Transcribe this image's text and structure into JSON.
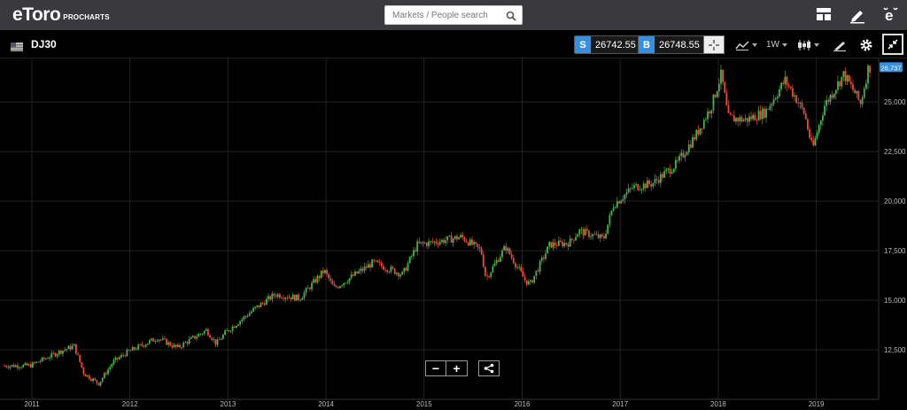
{
  "app": {
    "logo": "eToro",
    "logo_sub": "PROCHARTS"
  },
  "search": {
    "placeholder": "Markets / People search"
  },
  "instrument": {
    "symbol": "DJ30",
    "sell_label": "S",
    "sell_price": "26742.55",
    "buy_label": "B",
    "buy_price": "26748.55",
    "timeframe": "1W"
  },
  "chart_data": {
    "type": "candlestick",
    "x_ticks": [
      "2011",
      "2012",
      "2013",
      "2014",
      "2015",
      "2016",
      "2017",
      "2018",
      "2019"
    ],
    "y_ticks": [
      "12,500",
      "15,000",
      "17,500",
      "20,000",
      "22,500",
      "25,000"
    ],
    "ylim": [
      10000,
      27200
    ],
    "last_price_label": "26,737",
    "last_price": 26737,
    "grid": true,
    "colors": {
      "up": "#4caf50",
      "down": "#e74c3c",
      "grid": "#222222",
      "label": "#bbbbbb",
      "price_tag": "#3b8fd9"
    },
    "anchors": [
      [
        2011.0,
        11700
      ],
      [
        2011.3,
        12400
      ],
      [
        2011.45,
        12700
      ],
      [
        2011.55,
        11300
      ],
      [
        2011.7,
        10800
      ],
      [
        2011.85,
        11900
      ],
      [
        2012.0,
        12400
      ],
      [
        2012.3,
        13100
      ],
      [
        2012.5,
        12600
      ],
      [
        2012.8,
        13500
      ],
      [
        2012.9,
        12800
      ],
      [
        2013.0,
        13400
      ],
      [
        2013.3,
        14600
      ],
      [
        2013.5,
        15300
      ],
      [
        2013.75,
        15100
      ],
      [
        2014.0,
        16500
      ],
      [
        2014.1,
        15600
      ],
      [
        2014.5,
        16900
      ],
      [
        2014.8,
        16300
      ],
      [
        2014.95,
        17800
      ],
      [
        2015.2,
        18000
      ],
      [
        2015.4,
        18200
      ],
      [
        2015.6,
        17500
      ],
      [
        2015.65,
        16100
      ],
      [
        2015.85,
        17700
      ],
      [
        2016.05,
        16000
      ],
      [
        2016.1,
        15800
      ],
      [
        2016.3,
        17800
      ],
      [
        2016.5,
        17900
      ],
      [
        2016.6,
        18500
      ],
      [
        2016.85,
        18100
      ],
      [
        2016.95,
        19800
      ],
      [
        2017.15,
        20700
      ],
      [
        2017.35,
        20900
      ],
      [
        2017.6,
        21900
      ],
      [
        2017.8,
        23400
      ],
      [
        2017.95,
        24800
      ],
      [
        2018.05,
        26400
      ],
      [
        2018.12,
        24200
      ],
      [
        2018.3,
        24100
      ],
      [
        2018.5,
        24500
      ],
      [
        2018.7,
        26100
      ],
      [
        2018.8,
        25300
      ],
      [
        2018.9,
        24400
      ],
      [
        2018.98,
        22600
      ],
      [
        2019.1,
        24800
      ],
      [
        2019.3,
        26400
      ],
      [
        2019.42,
        25400
      ],
      [
        2019.47,
        24900
      ],
      [
        2019.55,
        26737
      ]
    ]
  }
}
